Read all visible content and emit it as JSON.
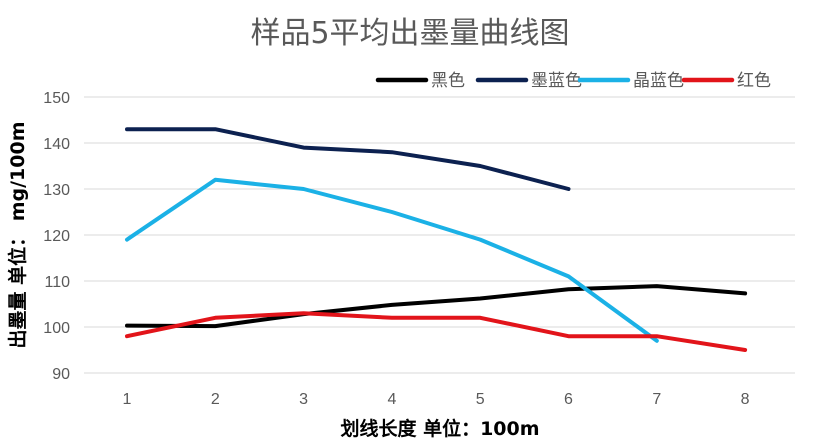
{
  "chart_data": {
    "type": "line",
    "title": "样品5平均出墨量曲线图",
    "xlabel": "划线长度 单位：100m",
    "ylabel": "出墨量 单位： mg/100m",
    "x": [
      1,
      2,
      3,
      4,
      5,
      6,
      7,
      8
    ],
    "xticks": [
      "1",
      "2",
      "3",
      "4",
      "5",
      "6",
      "7",
      "8"
    ],
    "ylim": [
      90,
      150
    ],
    "yticks": [
      "90",
      "100",
      "110",
      "120",
      "130",
      "140",
      "150"
    ],
    "grid": true,
    "legend_position": "top-right",
    "series": [
      {
        "name": "黑色",
        "color": "#000000",
        "x": [
          1,
          2,
          3,
          4,
          5,
          6,
          7,
          8
        ],
        "values": [
          100.3,
          100.2,
          102.8,
          104.8,
          106.2,
          108.2,
          108.9,
          107.3
        ]
      },
      {
        "name": "墨蓝色",
        "color": "#0c2150",
        "x": [
          1,
          2,
          3,
          4,
          5,
          6
        ],
        "values": [
          143,
          143,
          139,
          138,
          135,
          130
        ]
      },
      {
        "name": "晶蓝色",
        "color": "#1bb1e6",
        "x": [
          1,
          2,
          3,
          4,
          5,
          6,
          7
        ],
        "values": [
          119,
          132,
          130,
          125,
          119,
          111,
          97
        ]
      },
      {
        "name": "红色",
        "color": "#e2141a",
        "x": [
          1,
          2,
          3,
          4,
          5,
          6,
          7,
          8
        ],
        "values": [
          98,
          102,
          103,
          102,
          102,
          98,
          98,
          95
        ]
      }
    ]
  }
}
